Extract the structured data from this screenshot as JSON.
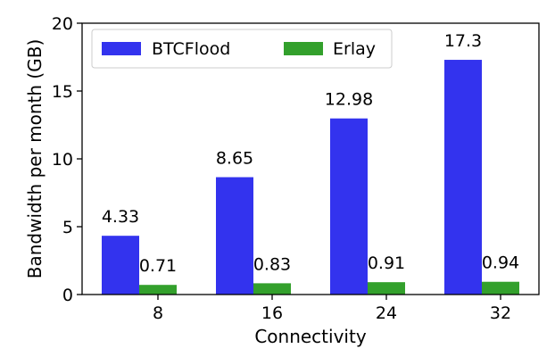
{
  "chart_data": {
    "type": "bar",
    "categories": [
      "8",
      "16",
      "24",
      "32"
    ],
    "series": [
      {
        "name": "BTCFlood",
        "values": [
          4.33,
          8.65,
          12.98,
          17.3
        ],
        "labels": [
          "4.33",
          "8.65",
          "12.98",
          "17.3"
        ],
        "color": "#3333ee"
      },
      {
        "name": "Erlay",
        "values": [
          0.71,
          0.83,
          0.91,
          0.94
        ],
        "labels": [
          "0.71",
          "0.83",
          "0.91",
          "0.94"
        ],
        "color": "#33a02c"
      }
    ],
    "xlabel": "Connectivity",
    "ylabel": "Bandwidth per month (GB)",
    "ylim": [
      0,
      20
    ],
    "yticks": [
      "0",
      "5",
      "10",
      "15",
      "20"
    ],
    "grid": false,
    "legend": "top-left"
  }
}
